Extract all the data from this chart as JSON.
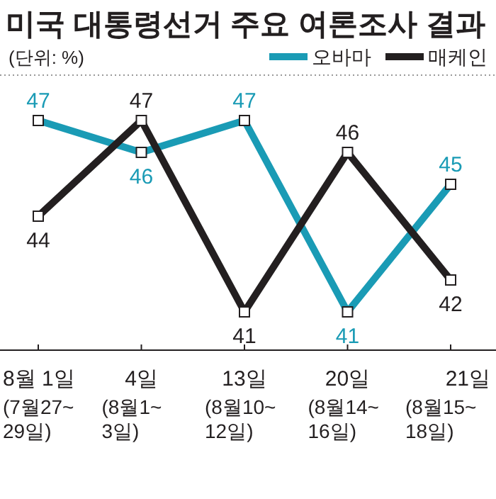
{
  "chart_data": {
    "type": "line",
    "title": "미국 대통령선거 주요 여론조사 결과",
    "subtitle": "(단위: %)",
    "categories": [
      "8월 1일\n(7월27~\n29일)",
      "4일\n(8월1~\n3일)",
      "13일\n(8월10~\n12일)",
      "20일\n(8월14~\n16일)",
      "21일\n(8월15~\n18일)"
    ],
    "series": [
      {
        "name": "오바마",
        "color": "#1a9bb5",
        "values": [
          47,
          46,
          47,
          41,
          45
        ]
      },
      {
        "name": "매케인",
        "color": "#231f20",
        "values": [
          44,
          47,
          41,
          46,
          42
        ]
      }
    ],
    "data_labels": true,
    "marker": "square",
    "legend": "top right"
  }
}
